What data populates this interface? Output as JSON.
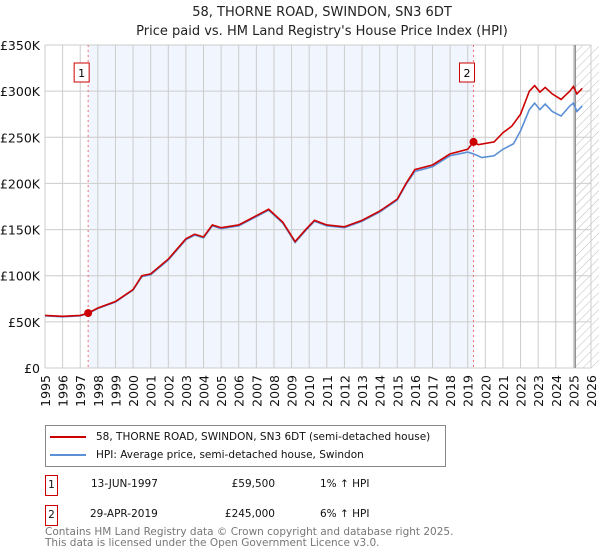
{
  "chart_data": {
    "type": "line",
    "title": "58, THORNE ROAD, SWINDON, SN3 6DT",
    "subtitle": "Price paid vs. HM Land Registry's House Price Index (HPI)",
    "xlim": [
      1995,
      2026
    ],
    "ylim": [
      0,
      350000
    ],
    "x_ticks": [
      "1995",
      "1996",
      "1997",
      "1998",
      "1999",
      "2000",
      "2001",
      "2002",
      "2003",
      "2004",
      "2005",
      "2006",
      "2007",
      "2008",
      "2009",
      "2010",
      "2011",
      "2012",
      "2013",
      "2014",
      "2015",
      "2016",
      "2017",
      "2018",
      "2019",
      "2020",
      "2021",
      "2022",
      "2023",
      "2024",
      "2025",
      "2026"
    ],
    "y_ticks": [
      {
        "v": 0,
        "label": "£0"
      },
      {
        "v": 50000,
        "label": "£50K"
      },
      {
        "v": 100000,
        "label": "£100K"
      },
      {
        "v": 150000,
        "label": "£150K"
      },
      {
        "v": 200000,
        "label": "£200K"
      },
      {
        "v": 250000,
        "label": "£250K"
      },
      {
        "v": 300000,
        "label": "£300K"
      },
      {
        "v": 350000,
        "label": "£350K"
      }
    ],
    "grid": true,
    "shaded_range": [
      1997.45,
      2019.33
    ],
    "hatched_from": 2025.1,
    "series": [
      {
        "name": "58, THORNE ROAD, SWINDON, SN3 6DT (semi-detached house)",
        "color": "#cc0000",
        "x": [
          1995,
          1996,
          1997,
          1997.45,
          1998,
          1999,
          2000,
          2000.5,
          2001,
          2002,
          2003,
          2003.5,
          2004,
          2004.5,
          2005,
          2006,
          2007,
          2007.7,
          2008.5,
          2009.2,
          2009.8,
          2010.3,
          2011,
          2012,
          2013,
          2014,
          2015,
          2015.5,
          2016,
          2017,
          2018,
          2019,
          2019.33,
          2019.6,
          2020.5,
          2021,
          2021.5,
          2022,
          2022.5,
          2022.8,
          2023.1,
          2023.4,
          2023.8,
          2024.3,
          2024.8,
          2025,
          2025.2,
          2025.5
        ],
        "y": [
          57000,
          56000,
          57000,
          59500,
          65000,
          72000,
          85000,
          100000,
          102000,
          118000,
          140000,
          145000,
          142000,
          155000,
          152000,
          155000,
          165000,
          172000,
          158000,
          137000,
          150000,
          160000,
          155000,
          153000,
          160000,
          170000,
          183000,
          200000,
          215000,
          220000,
          232000,
          237000,
          245000,
          242000,
          245000,
          255000,
          262000,
          275000,
          300000,
          306000,
          299000,
          304000,
          297000,
          291000,
          300000,
          305000,
          297000,
          303000
        ]
      },
      {
        "name": "HPI: Average price, semi-detached house, Swindon",
        "color": "#5b8fd6",
        "x": [
          1995,
          1996,
          1997,
          1997.45,
          1998,
          1999,
          2000,
          2000.5,
          2001,
          2002,
          2003,
          2003.5,
          2004,
          2004.5,
          2005,
          2006,
          2007,
          2007.7,
          2008.5,
          2009.2,
          2009.8,
          2010.3,
          2011,
          2012,
          2013,
          2014,
          2015,
          2015.5,
          2016,
          2017,
          2018,
          2019,
          2019.33,
          2019.8,
          2020.5,
          2021,
          2021.6,
          2022,
          2022.5,
          2022.8,
          2023.1,
          2023.4,
          2023.8,
          2024.3,
          2024.8,
          2025,
          2025.2,
          2025.5
        ],
        "y": [
          56500,
          55500,
          56500,
          59000,
          64500,
          71500,
          84500,
          99000,
          101000,
          117000,
          139000,
          144000,
          141000,
          154000,
          151000,
          154000,
          164000,
          171000,
          157000,
          136000,
          149000,
          159000,
          154000,
          152000,
          159000,
          169000,
          182000,
          199000,
          213000,
          218000,
          230000,
          234000,
          232000,
          228000,
          230000,
          237000,
          243000,
          257000,
          280000,
          287000,
          280000,
          286000,
          278000,
          273000,
          284000,
          287000,
          278000,
          284000
        ]
      }
    ],
    "annotations": [
      {
        "label": "1",
        "x": 1997.45,
        "y": 59500
      },
      {
        "label": "2",
        "x": 2019.33,
        "y": 245000
      }
    ]
  },
  "sales": [
    {
      "num": "1",
      "date": "13-JUN-1997",
      "price": "£59,500",
      "hpi": "1% ↑ HPI"
    },
    {
      "num": "2",
      "date": "29-APR-2019",
      "price": "£245,000",
      "hpi": "6% ↑ HPI"
    }
  ],
  "footer": {
    "line1": "Contains HM Land Registry data © Crown copyright and database right 2025.",
    "line2": "This data is licensed under the Open Government Licence v3.0."
  }
}
